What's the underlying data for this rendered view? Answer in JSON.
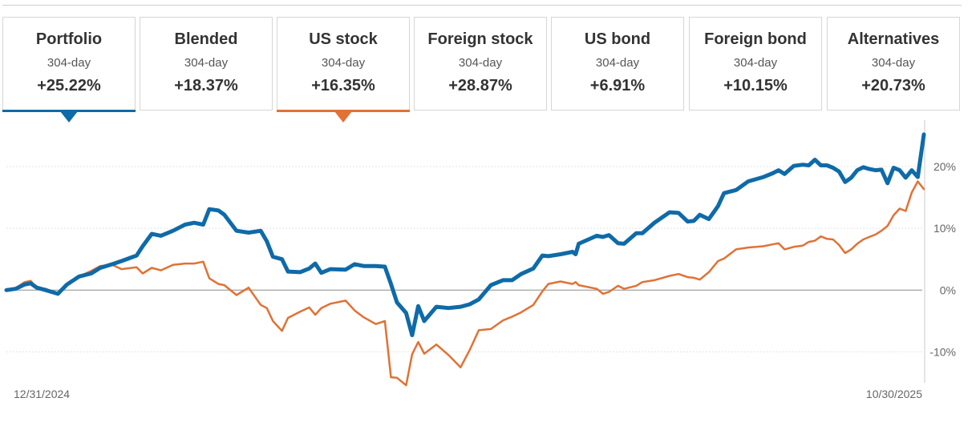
{
  "tabs": [
    {
      "title": "Portfolio",
      "period": "304-day",
      "return": "+25.22%",
      "selected": true,
      "color": "#0f6aa8"
    },
    {
      "title": "Blended",
      "period": "304-day",
      "return": "+18.37%",
      "selected": false
    },
    {
      "title": "US stock",
      "period": "304-day",
      "return": "+16.35%",
      "selected": true,
      "color": "#e07235"
    },
    {
      "title": "Foreign stock",
      "period": "304-day",
      "return": "+28.87%",
      "selected": false
    },
    {
      "title": "US bond",
      "period": "304-day",
      "return": "+6.91%",
      "selected": false
    },
    {
      "title": "Foreign bond",
      "period": "304-day",
      "return": "+10.15%",
      "selected": false
    },
    {
      "title": "Alternatives",
      "period": "304-day",
      "return": "+20.73%",
      "selected": false
    }
  ],
  "chart_data": {
    "type": "line",
    "x_start_label": "12/31/2024",
    "x_end_label": "10/30/2025",
    "x_domain": [
      "2024-12-31",
      "2025-10-30"
    ],
    "ylim": [
      -15,
      27
    ],
    "yticks": [
      {
        "value": 20,
        "label": "20%"
      },
      {
        "value": 10,
        "label": "10%"
      },
      {
        "value": 0,
        "label": "0%"
      },
      {
        "value": -10,
        "label": "-10%"
      }
    ],
    "grid": true,
    "series": [
      {
        "name": "Portfolio",
        "color": "#0f6aa8",
        "width": 5,
        "points": [
          [
            "2024-12-31",
            0
          ],
          [
            "2025-01-03",
            0.2
          ],
          [
            "2025-01-06",
            0.9
          ],
          [
            "2025-01-08",
            1.1
          ],
          [
            "2025-01-10",
            0.4
          ],
          [
            "2025-01-13",
            0
          ],
          [
            "2025-01-15",
            -0.3
          ],
          [
            "2025-01-17",
            -0.6
          ],
          [
            "2025-01-20",
            0.9
          ],
          [
            "2025-01-24",
            2.2
          ],
          [
            "2025-01-28",
            2.7
          ],
          [
            "2025-01-31",
            3.6
          ],
          [
            "2025-02-04",
            4.2
          ],
          [
            "2025-02-07",
            4.7
          ],
          [
            "2025-02-12",
            5.6
          ],
          [
            "2025-02-14",
            7.1
          ],
          [
            "2025-02-17",
            9.1
          ],
          [
            "2025-02-20",
            8.8
          ],
          [
            "2025-02-24",
            9.6
          ],
          [
            "2025-02-28",
            10.6
          ],
          [
            "2025-03-03",
            10.9
          ],
          [
            "2025-03-06",
            10.6
          ],
          [
            "2025-03-08",
            13.1
          ],
          [
            "2025-03-11",
            12.9
          ],
          [
            "2025-03-13",
            12.2
          ],
          [
            "2025-03-17",
            9.6
          ],
          [
            "2025-03-21",
            9.3
          ],
          [
            "2025-03-25",
            9.6
          ],
          [
            "2025-03-27",
            7.9
          ],
          [
            "2025-03-29",
            5.4
          ],
          [
            "2025-04-01",
            5.0
          ],
          [
            "2025-04-03",
            3.0
          ],
          [
            "2025-04-07",
            2.9
          ],
          [
            "2025-04-10",
            3.5
          ],
          [
            "2025-04-12",
            4.3
          ],
          [
            "2025-04-14",
            2.8
          ],
          [
            "2025-04-17",
            3.4
          ],
          [
            "2025-04-22",
            3.3
          ],
          [
            "2025-04-25",
            4.2
          ],
          [
            "2025-04-28",
            3.9
          ],
          [
            "2025-05-02",
            3.9
          ],
          [
            "2025-05-05",
            3.8
          ],
          [
            "2025-05-07",
            1.0
          ],
          [
            "2025-05-09",
            -2.0
          ],
          [
            "2025-05-12",
            -3.7
          ],
          [
            "2025-05-14",
            -7.3
          ],
          [
            "2025-05-16",
            -2.6
          ],
          [
            "2025-05-18",
            -5.0
          ],
          [
            "2025-05-22",
            -2.7
          ],
          [
            "2025-05-26",
            -2.9
          ],
          [
            "2025-05-30",
            -2.7
          ],
          [
            "2025-06-02",
            -2.3
          ],
          [
            "2025-06-05",
            -1.5
          ],
          [
            "2025-06-09",
            0.8
          ],
          [
            "2025-06-13",
            1.6
          ],
          [
            "2025-06-16",
            1.6
          ],
          [
            "2025-06-19",
            2.6
          ],
          [
            "2025-06-23",
            3.5
          ],
          [
            "2025-06-26",
            5.6
          ],
          [
            "2025-06-28",
            5.5
          ],
          [
            "2025-07-02",
            5.8
          ],
          [
            "2025-07-06",
            6.2
          ],
          [
            "2025-07-07",
            5.8
          ],
          [
            "2025-07-08",
            7.5
          ],
          [
            "2025-07-14",
            8.8
          ],
          [
            "2025-07-16",
            8.6
          ],
          [
            "2025-07-18",
            8.9
          ],
          [
            "2025-07-21",
            7.6
          ],
          [
            "2025-07-23",
            7.5
          ],
          [
            "2025-07-27",
            9.2
          ],
          [
            "2025-07-29",
            9.2
          ],
          [
            "2025-08-02",
            10.9
          ],
          [
            "2025-08-07",
            12.6
          ],
          [
            "2025-08-10",
            12.5
          ],
          [
            "2025-08-13",
            11.1
          ],
          [
            "2025-08-15",
            11.2
          ],
          [
            "2025-08-17",
            12.2
          ],
          [
            "2025-08-20",
            11.5
          ],
          [
            "2025-08-23",
            13.6
          ],
          [
            "2025-08-25",
            15.7
          ],
          [
            "2025-08-29",
            16.2
          ],
          [
            "2025-09-02",
            17.6
          ],
          [
            "2025-09-07",
            18.3
          ],
          [
            "2025-09-10",
            18.9
          ],
          [
            "2025-09-12",
            19.4
          ],
          [
            "2025-09-14",
            18.8
          ],
          [
            "2025-09-17",
            20.1
          ],
          [
            "2025-09-20",
            20.3
          ],
          [
            "2025-09-22",
            20.2
          ],
          [
            "2025-09-24",
            21.1
          ],
          [
            "2025-09-26",
            20.2
          ],
          [
            "2025-09-28",
            20.2
          ],
          [
            "2025-09-30",
            19.8
          ],
          [
            "2025-10-02",
            19.2
          ],
          [
            "2025-10-04",
            17.5
          ],
          [
            "2025-10-06",
            18.2
          ],
          [
            "2025-10-08",
            19.4
          ],
          [
            "2025-10-10",
            19.9
          ],
          [
            "2025-10-12",
            19.6
          ],
          [
            "2025-10-14",
            19.4
          ],
          [
            "2025-10-16",
            19.5
          ],
          [
            "2025-10-18",
            17.3
          ],
          [
            "2025-10-20",
            19.8
          ],
          [
            "2025-10-22",
            19.4
          ],
          [
            "2025-10-24",
            18.2
          ],
          [
            "2025-10-26",
            19.4
          ],
          [
            "2025-10-28",
            18.3
          ],
          [
            "2025-10-30",
            25.2
          ]
        ]
      },
      {
        "name": "US stock",
        "color": "#e07235",
        "width": 2.5,
        "points": [
          [
            "2024-12-31",
            0
          ],
          [
            "2025-01-03",
            0.3
          ],
          [
            "2025-01-06",
            1.3
          ],
          [
            "2025-01-08",
            1.5
          ],
          [
            "2025-01-10",
            0.4
          ],
          [
            "2025-01-13",
            0.2
          ],
          [
            "2025-01-15",
            -0.4
          ],
          [
            "2025-01-17",
            -0.6
          ],
          [
            "2025-01-20",
            1.0
          ],
          [
            "2025-01-24",
            2.2
          ],
          [
            "2025-01-28",
            3.1
          ],
          [
            "2025-01-31",
            3.9
          ],
          [
            "2025-02-04",
            4.1
          ],
          [
            "2025-02-07",
            3.4
          ],
          [
            "2025-02-12",
            3.7
          ],
          [
            "2025-02-14",
            2.7
          ],
          [
            "2025-02-17",
            3.6
          ],
          [
            "2025-02-20",
            3.2
          ],
          [
            "2025-02-24",
            4.1
          ],
          [
            "2025-02-28",
            4.3
          ],
          [
            "2025-03-03",
            4.3
          ],
          [
            "2025-03-06",
            4.6
          ],
          [
            "2025-03-08",
            1.9
          ],
          [
            "2025-03-11",
            1.0
          ],
          [
            "2025-03-13",
            0.8
          ],
          [
            "2025-03-17",
            -0.8
          ],
          [
            "2025-03-21",
            0.4
          ],
          [
            "2025-03-25",
            -2.4
          ],
          [
            "2025-03-27",
            -2.9
          ],
          [
            "2025-03-29",
            -5.0
          ],
          [
            "2025-04-01",
            -6.6
          ],
          [
            "2025-04-03",
            -4.5
          ],
          [
            "2025-04-07",
            -3.5
          ],
          [
            "2025-04-10",
            -2.8
          ],
          [
            "2025-04-12",
            -4.0
          ],
          [
            "2025-04-14",
            -2.9
          ],
          [
            "2025-04-17",
            -2.2
          ],
          [
            "2025-04-22",
            -1.7
          ],
          [
            "2025-04-25",
            -3.3
          ],
          [
            "2025-04-28",
            -4.4
          ],
          [
            "2025-05-02",
            -5.5
          ],
          [
            "2025-05-05",
            -5.0
          ],
          [
            "2025-05-07",
            -14.1
          ],
          [
            "2025-05-09",
            -14.2
          ],
          [
            "2025-05-12",
            -15.4
          ],
          [
            "2025-05-14",
            -10.4
          ],
          [
            "2025-05-16",
            -8.4
          ],
          [
            "2025-05-18",
            -10.3
          ],
          [
            "2025-05-22",
            -8.8
          ],
          [
            "2025-05-26",
            -10.5
          ],
          [
            "2025-05-30",
            -12.5
          ],
          [
            "2025-06-02",
            -9.7
          ],
          [
            "2025-06-05",
            -6.5
          ],
          [
            "2025-06-09",
            -6.3
          ],
          [
            "2025-06-13",
            -4.9
          ],
          [
            "2025-06-16",
            -4.3
          ],
          [
            "2025-06-19",
            -3.6
          ],
          [
            "2025-06-23",
            -2.4
          ],
          [
            "2025-06-26",
            -0.2
          ],
          [
            "2025-06-28",
            1.0
          ],
          [
            "2025-07-02",
            1.4
          ],
          [
            "2025-07-06",
            1.0
          ],
          [
            "2025-07-07",
            1.3
          ],
          [
            "2025-07-08",
            0.8
          ],
          [
            "2025-07-14",
            0.2
          ],
          [
            "2025-07-16",
            -0.6
          ],
          [
            "2025-07-18",
            -0.3
          ],
          [
            "2025-07-21",
            0.7
          ],
          [
            "2025-07-23",
            0.2
          ],
          [
            "2025-07-27",
            0.7
          ],
          [
            "2025-07-29",
            1.3
          ],
          [
            "2025-08-02",
            1.6
          ],
          [
            "2025-08-07",
            2.3
          ],
          [
            "2025-08-10",
            2.6
          ],
          [
            "2025-08-13",
            2.1
          ],
          [
            "2025-08-15",
            2.0
          ],
          [
            "2025-08-17",
            1.7
          ],
          [
            "2025-08-20",
            2.9
          ],
          [
            "2025-08-23",
            4.7
          ],
          [
            "2025-08-25",
            5.1
          ],
          [
            "2025-08-29",
            6.6
          ],
          [
            "2025-09-02",
            6.9
          ],
          [
            "2025-09-07",
            7.1
          ],
          [
            "2025-09-10",
            7.4
          ],
          [
            "2025-09-12",
            7.6
          ],
          [
            "2025-09-14",
            6.6
          ],
          [
            "2025-09-17",
            7.0
          ],
          [
            "2025-09-20",
            7.2
          ],
          [
            "2025-09-22",
            7.8
          ],
          [
            "2025-09-24",
            8.0
          ],
          [
            "2025-09-26",
            8.7
          ],
          [
            "2025-09-28",
            8.3
          ],
          [
            "2025-09-30",
            8.2
          ],
          [
            "2025-10-02",
            7.3
          ],
          [
            "2025-10-04",
            6.0
          ],
          [
            "2025-10-06",
            6.6
          ],
          [
            "2025-10-08",
            7.5
          ],
          [
            "2025-10-10",
            8.2
          ],
          [
            "2025-10-12",
            8.6
          ],
          [
            "2025-10-14",
            9.0
          ],
          [
            "2025-10-16",
            9.6
          ],
          [
            "2025-10-18",
            10.4
          ],
          [
            "2025-10-20",
            12.1
          ],
          [
            "2025-10-22",
            13.2
          ],
          [
            "2025-10-24",
            12.8
          ],
          [
            "2025-10-26",
            15.8
          ],
          [
            "2025-10-28",
            17.6
          ],
          [
            "2025-10-30",
            16.35
          ]
        ]
      }
    ]
  }
}
